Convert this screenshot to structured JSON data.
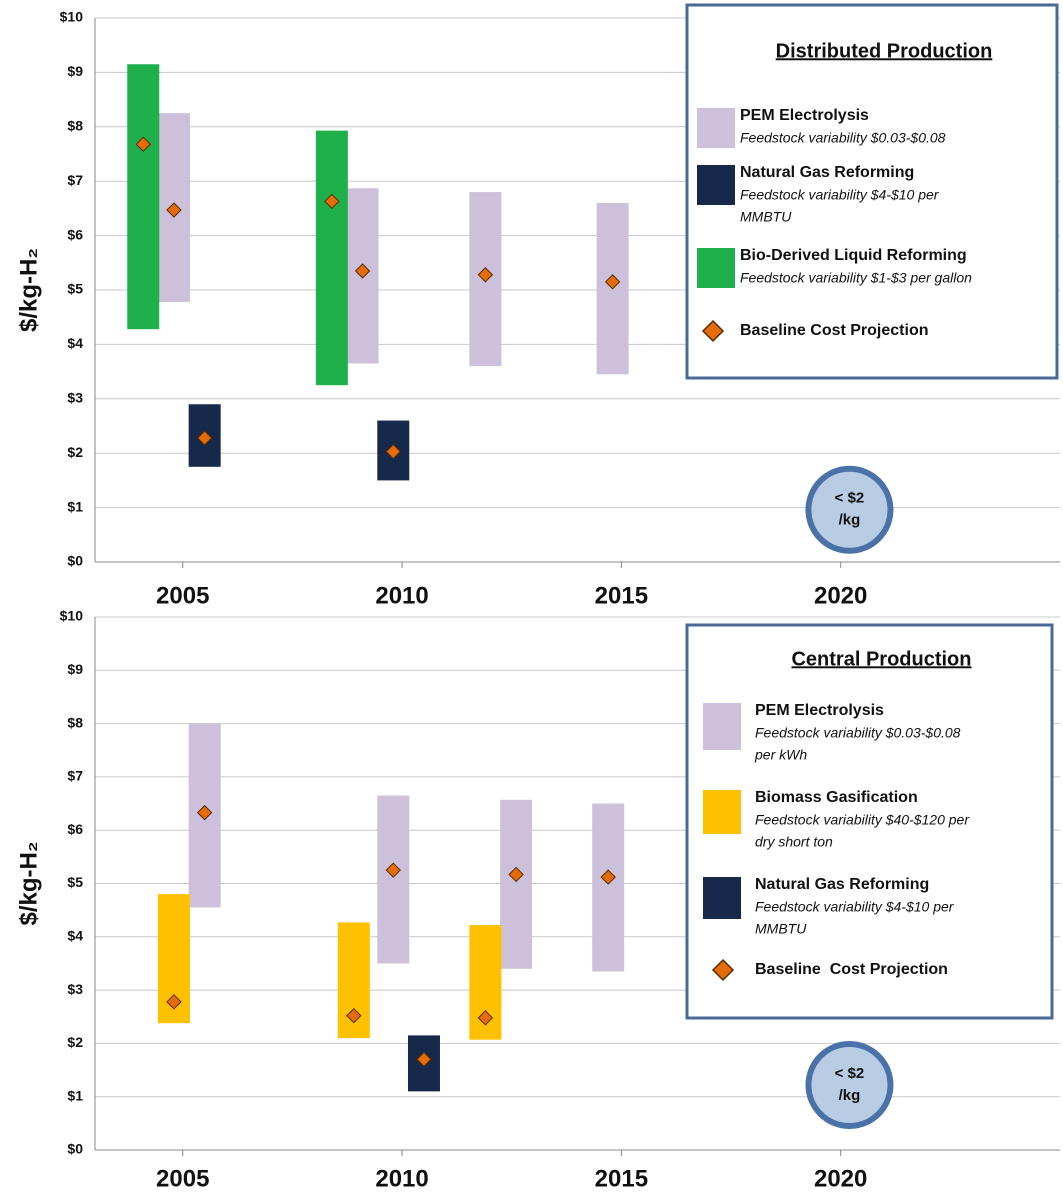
{
  "chart_data": [
    {
      "type": "range",
      "ylabel": "$/kg-H₂",
      "legend_title": "Distributed Production",
      "baseline_name": "Baseline Cost Projection",
      "baseline_color": "#e46c0a",
      "xlim": [
        2003,
        2025
      ],
      "xticks": [
        2005,
        2010,
        2015,
        2020
      ],
      "ylim": [
        0,
        10
      ],
      "yticks": [
        {
          "value": 0,
          "label": "$0"
        },
        {
          "value": 1,
          "label": "$1"
        },
        {
          "value": 2,
          "label": "$2"
        },
        {
          "value": 3,
          "label": "$3"
        },
        {
          "value": 4,
          "label": "$4"
        },
        {
          "value": 5,
          "label": "$5"
        },
        {
          "value": 6,
          "label": "$6"
        },
        {
          "value": 7,
          "label": "$7"
        },
        {
          "value": 8,
          "label": "$8"
        },
        {
          "value": 9,
          "label": "$9"
        },
        {
          "value": 10,
          "label": "$10"
        }
      ],
      "grid": true,
      "series": [
        {
          "name": "PEM Electrolysis",
          "description": [
            "Feedstock variability $0.03-$0.08"
          ],
          "color": "#ccc0da",
          "x": [
            2004.8,
            2009.1,
            2011.9,
            2014.8
          ],
          "low": [
            4.78,
            3.65,
            3.6,
            3.45
          ],
          "high": [
            8.25,
            6.87,
            6.8,
            6.6
          ],
          "baseline": [
            6.47,
            5.35,
            5.28,
            5.15
          ]
        },
        {
          "name": "Natural Gas Reforming",
          "description": [
            "Feedstock variability $4-$10 per",
            "MMBTU"
          ],
          "color": "#17294a",
          "x": [
            2005.5,
            2009.8
          ],
          "low": [
            1.75,
            1.5
          ],
          "high": [
            2.9,
            2.6
          ],
          "baseline": [
            2.28,
            2.03
          ]
        },
        {
          "name": "Bio-Derived Liquid Reforming",
          "description": [
            "Feedstock variability $1-$3 per gallon"
          ],
          "color": "#1fb04b",
          "x": [
            2004.1,
            2008.4
          ],
          "low": [
            4.28,
            3.25
          ],
          "high": [
            9.15,
            7.93
          ],
          "baseline": [
            7.68,
            6.63
          ]
        }
      ],
      "target": {
        "x": 2020.2,
        "y": 0.96,
        "lines": [
          "< $2",
          "/kg"
        ]
      }
    },
    {
      "type": "range",
      "ylabel": "$/kg-H₂",
      "legend_title": "Central Production",
      "baseline_name": "Baseline  Cost Projection",
      "baseline_color": "#e46c0a",
      "xlim": [
        2003,
        2025
      ],
      "xticks": [
        2005,
        2010,
        2015,
        2020
      ],
      "ylim": [
        0,
        10
      ],
      "yticks": [
        {
          "value": 0,
          "label": "$0"
        },
        {
          "value": 1,
          "label": "$1"
        },
        {
          "value": 2,
          "label": "$2"
        },
        {
          "value": 3,
          "label": "$3"
        },
        {
          "value": 4,
          "label": "$4"
        },
        {
          "value": 5,
          "label": "$5"
        },
        {
          "value": 6,
          "label": "$6"
        },
        {
          "value": 7,
          "label": "$7"
        },
        {
          "value": 8,
          "label": "$8"
        },
        {
          "value": 9,
          "label": "$9"
        },
        {
          "value": 10,
          "label": "$10"
        }
      ],
      "grid": true,
      "series": [
        {
          "name": "PEM Electrolysis",
          "description": [
            "Feedstock variability $0.03-$0.08",
            "per kWh"
          ],
          "color": "#ccc0da",
          "x": [
            2005.5,
            2009.8,
            2012.6,
            2014.7
          ],
          "low": [
            4.55,
            3.5,
            3.4,
            3.35
          ],
          "high": [
            8.0,
            6.65,
            6.57,
            6.5
          ],
          "baseline": [
            6.33,
            5.25,
            5.17,
            5.12
          ]
        },
        {
          "name": "Biomass Gasification",
          "description": [
            "Feedstock variability $40-$120 per",
            "dry short ton"
          ],
          "color": "#ffc000",
          "x": [
            2004.8,
            2008.9,
            2011.9
          ],
          "low": [
            2.38,
            2.1,
            2.07
          ],
          "high": [
            4.8,
            4.27,
            4.22
          ],
          "baseline": [
            2.78,
            2.52,
            2.48
          ]
        },
        {
          "name": "Natural Gas Reforming",
          "description": [
            "Feedstock variability $4-$10 per",
            "MMBTU"
          ],
          "color": "#17294a",
          "x": [
            2010.5
          ],
          "low": [
            1.1
          ],
          "high": [
            2.15
          ],
          "baseline": [
            1.7
          ]
        }
      ],
      "target": {
        "x": 2020.2,
        "y": 1.22,
        "lines": [
          "< $2",
          "/kg"
        ]
      }
    }
  ]
}
